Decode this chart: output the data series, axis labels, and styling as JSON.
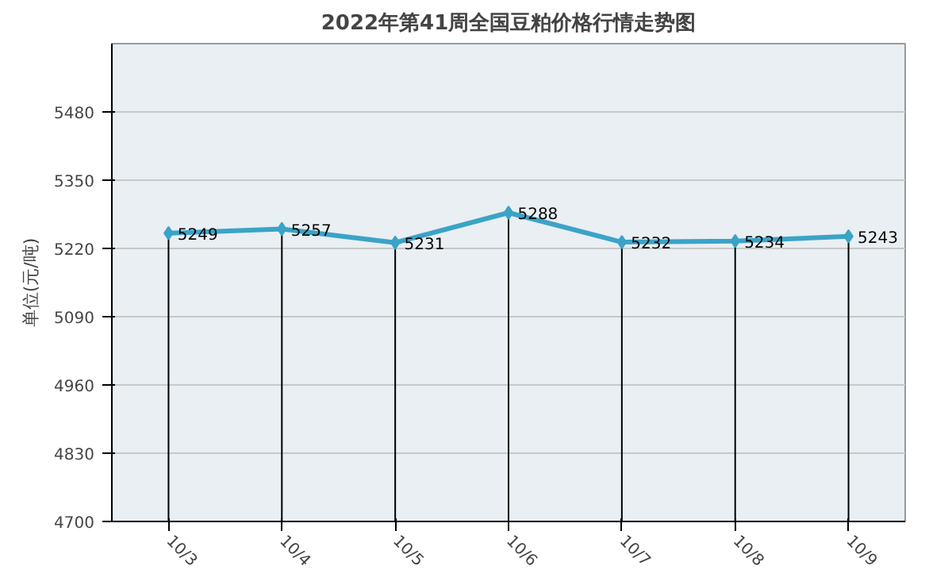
{
  "chart_data": {
    "type": "line",
    "title": "2022年第41周全国豆粕价格行情走势图",
    "ylabel": "单位(元/吨)",
    "categories": [
      "10/3",
      "10/4",
      "10/5",
      "10/6",
      "10/7",
      "10/8",
      "10/9"
    ],
    "series": [
      {
        "color": "#3ba3c8",
        "values": [
          5249,
          5257,
          5231,
          5288,
          5232,
          5234,
          5243
        ]
      }
    ],
    "ylim": [
      4700,
      5610
    ],
    "yticks": [
      4700,
      4830,
      4960,
      5090,
      5220,
      5350,
      5480
    ],
    "grid": "y",
    "marker": "diamond",
    "line_style": "solid",
    "data_labels": true
  }
}
